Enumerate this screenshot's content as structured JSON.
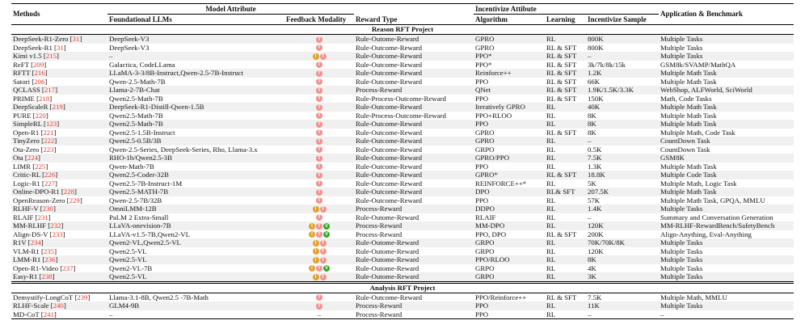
{
  "table": {
    "headers": {
      "methods": "Methods",
      "model_attribute": "Model Attribute",
      "foundational_llms": "Foundational LLMs",
      "feedback_modality": "Feedback Modality",
      "reward_type": "Reward Type",
      "incentivize_attibute": "Incentivize Attibute",
      "algorithm": "Algorithm",
      "learning": "Learning",
      "incentivize_sample": "Incentivize Sample",
      "application_benchmark": "Application & Benchmark"
    },
    "modality_legend": {
      "I": "image-modality-icon",
      "T": "text-modality-icon",
      "V": "video-modality-icon"
    },
    "colors": {
      "citation_red": "#e8362a",
      "stripe_gray": "#f0f0f0",
      "modality_I": "#e2a12f",
      "modality_T": "#f2908c",
      "modality_V": "#3aa32a"
    },
    "sections": [
      {
        "title": "Reason RFT Project",
        "rows": [
          {
            "method": "DeepSeek-R1-Zero",
            "cite": "31",
            "llm": "DeepSeek-V3",
            "modality": [
              "T"
            ],
            "reward": "Rule-Outome-Reward",
            "algorithm": "GPRO",
            "learning": "RL",
            "sample": "800K",
            "application": "Multiple Tasks"
          },
          {
            "method": "DeepSeek-R1",
            "cite": "31",
            "llm": "DeepSeek-V3",
            "modality": [
              "T"
            ],
            "reward": "Rule-Outcome-Reward",
            "algorithm": "GPRO",
            "learning": "RL & SFT",
            "sample": "800K",
            "application": "Multiple Tasks"
          },
          {
            "method": "Kimi v1.5",
            "cite": "215",
            "llm": "–",
            "modality": [
              "I",
              "T"
            ],
            "reward": "Rule-Outcome-Reward",
            "algorithm": "PPO*",
            "learning": "RL & SFT",
            "sample": "–",
            "application": "Multiple Tasks"
          },
          {
            "method": "ReFT",
            "cite": "209",
            "llm": "Galactica, CodeLLama",
            "modality": [
              "T"
            ],
            "reward": "Rule-Outcome-Reward",
            "algorithm": "PPO*",
            "learning": "RL & SFT",
            "sample": "3k/7k/8k/15k",
            "application": "GSM8k/SVAMP/MathQA"
          },
          {
            "method": "RFTT",
            "cite": "216",
            "llm": "LLaMA-3-3/8B-Instruct,Qwen-2.5-7B-Instruct",
            "modality": [
              "T"
            ],
            "reward": "Rule-Outcome-Reward",
            "algorithm": "Reinforce++",
            "learning": "RL & SFT",
            "sample": "1.2K",
            "application": "Multiple Math Task"
          },
          {
            "method": "Satori",
            "cite": "206",
            "llm": "Qwen-2.5-Math-7B",
            "modality": [
              "T"
            ],
            "reward": "Rule-Outcome-Reward",
            "algorithm": "PPO",
            "learning": "RL & SFT",
            "sample": "66K",
            "application": "Multiple Math Task"
          },
          {
            "method": "QCLASS",
            "cite": "217",
            "llm": "Llama-2-7B-Chat",
            "modality": [
              "T"
            ],
            "reward": "Process-Reward",
            "algorithm": "QNet",
            "learning": "RL & SFT",
            "sample": "1.9K/1.5K/3.3K",
            "application": "WebShop, ALFWorld, SciWorld"
          },
          {
            "method": "PRIME",
            "cite": "218",
            "llm": "Qwen2.5-Math-7B",
            "modality": [
              "T"
            ],
            "reward": "Rule-Process-Outcome-Reward",
            "algorithm": "PPO",
            "learning": "RL & SFT",
            "sample": "150K",
            "application": "Math, Code Tasks"
          },
          {
            "method": "DeepScaleR",
            "cite": "219",
            "llm": "DeepSeek-R1-Distill-Qwen-1.5B",
            "modality": [
              "T"
            ],
            "reward": "Rule-Outcome-Reward",
            "algorithm": "Iteratively GPRO",
            "learning": "RL",
            "sample": "40K",
            "application": "Multiple Math Task"
          },
          {
            "method": "PURE",
            "cite": "220",
            "llm": "Qwen2.5-Math-7B",
            "modality": [
              "T"
            ],
            "reward": "Rule-Process-Outcome-Reward",
            "algorithm": "PPO+RLOO",
            "learning": "RL",
            "sample": "8K",
            "application": "Multiple Math Task"
          },
          {
            "method": "SimpleRL",
            "cite": "123",
            "llm": "Qwen2.5-Math-7B",
            "modality": [
              "T"
            ],
            "reward": "Rule-Outcome-Reward",
            "algorithm": "PPO",
            "learning": "RL",
            "sample": "8K",
            "application": "Multiple Math Task"
          },
          {
            "method": "Open-R1",
            "cite": "221",
            "llm": "Qwen2.5-1.5B-Instruct",
            "modality": [
              "T"
            ],
            "reward": "Rule-Outcome-Reward",
            "algorithm": "GPRO",
            "learning": "RL & SFT",
            "sample": "8K",
            "application": "Multiple Math, Code Task"
          },
          {
            "method": "TinyZero",
            "cite": "222",
            "llm": "Qwen2.5-0.5B/3B",
            "modality": [
              "T"
            ],
            "reward": "Rule-Outcome-Reward",
            "algorithm": "GPRO",
            "learning": "RL",
            "sample": "–",
            "application": "CountDown Task"
          },
          {
            "method": "Ota-Zero",
            "cite": "223",
            "llm": "Qwen-2.5-Series, DeepSeek-Series, Rho, Llama-3.x",
            "modality": [
              "T"
            ],
            "reward": "Rule-Outcome-Reward",
            "algorithm": "GRPO",
            "learning": "RL",
            "sample": "0.5K",
            "application": "CountDown Task"
          },
          {
            "method": "Ota",
            "cite": "224",
            "llm": "RHO-1b/Qwen2.5-3B",
            "modality": [
              "T"
            ],
            "reward": "Rule-Outcome-Reward",
            "algorithm": "GPRO/PPO",
            "learning": "RL",
            "sample": "7.5K",
            "application": "GSM8K"
          },
          {
            "method": "LIMR",
            "cite": "225",
            "llm": "Qwen-Math-7B",
            "modality": [
              "T"
            ],
            "reward": "Rule-Outcome-Reward",
            "algorithm": "PPO",
            "learning": "RL",
            "sample": "1.3K",
            "application": "Multiple Math Task"
          },
          {
            "method": "Critic-RL",
            "cite": "226",
            "llm": "Qwen2.5-Coder-32B",
            "modality": [
              "T"
            ],
            "reward": "Rule-Outcome-Reward",
            "algorithm": "GPRO*",
            "learning": "RL & SFT",
            "sample": "18.8K",
            "application": "Multiple Code Task"
          },
          {
            "method": "Logic-R1",
            "cite": "227",
            "llm": "Qwen2.5-7B-Instruct-1M",
            "modality": [
              "T"
            ],
            "reward": "Rule-Outcome-Reward",
            "algorithm": "REINFORCE++*",
            "learning": "RL",
            "sample": "5K",
            "application": "Multiple Math, Logic Task"
          },
          {
            "method": "Online-DPO-R1",
            "cite": "228",
            "llm": "Qwen2.5-MATH-7B",
            "modality": [
              "T"
            ],
            "reward": "Rule-Outcome-Reward",
            "algorithm": "DPO",
            "learning": "RL& SFT",
            "sample": "207.5K",
            "application": "Multiple Math Task"
          },
          {
            "method": "OpenReason-Zero",
            "cite": "229",
            "llm": "Qwen-2.5-7B/32B",
            "modality": [
              "T"
            ],
            "reward": "Rule-Outcome-Reward",
            "algorithm": "PPO",
            "learning": "RL",
            "sample": "57K",
            "application": "Multiple Math Task, GPQA, MMLU"
          },
          {
            "method": "RLHF-V",
            "cite": "230",
            "llm": "OmniLMM-12B",
            "modality": [
              "I",
              "T"
            ],
            "reward": "Process-Reward",
            "algorithm": "DDPO",
            "learning": "RL",
            "sample": "1.4K",
            "application": "Multiple Tasks"
          },
          {
            "method": "RLAIF",
            "cite": "231",
            "llm": "PaLM 2 Extra-Small",
            "modality": [
              "T"
            ],
            "reward": "Rule-Outome-Reward",
            "algorithm": "RLAIF",
            "learning": "RL",
            "sample": "–",
            "application": "Summary and Conversation Generation"
          },
          {
            "method": "MM-RLHF",
            "cite": "232",
            "llm": "LLaVA-onevision-7B",
            "modality": [
              "I",
              "T",
              "V"
            ],
            "reward": "Process-Reward",
            "algorithm": "MM-DPO",
            "learning": "RL",
            "sample": "120K",
            "application": "MM-RLHF-RewardBench/SafetyBench"
          },
          {
            "method": "Align-DS-V",
            "cite": "233",
            "llm": "LLaVA-v1.5-7B,Qwen2-VL",
            "modality": [
              "I",
              "T",
              "V"
            ],
            "reward": "Process-Reward",
            "algorithm": "PPO, DPO",
            "learning": "RL & SFT",
            "sample": "200K",
            "application": "Align-Anything, Eval-Anything"
          },
          {
            "method": "R1V",
            "cite": "234",
            "llm": "Qwen2-VL,Qwen2.5-VL",
            "modality": [
              "I",
              "T"
            ],
            "reward": "Rule-Outome-Reward",
            "algorithm": "GRPO",
            "learning": "RL",
            "sample": "70K/70K/8K",
            "application": "Multiple Tasks"
          },
          {
            "method": "VLM-R1",
            "cite": "235",
            "llm": "Qwen2.5-VL",
            "modality": [
              "I",
              "T"
            ],
            "reward": "Rule-Outome-Reward",
            "algorithm": "GRPO",
            "learning": "RL",
            "sample": "120K",
            "application": "Multiple Tasks"
          },
          {
            "method": "LMM-R1",
            "cite": "236",
            "llm": "Qwen2.5-VL",
            "modality": [
              "I",
              "T"
            ],
            "reward": "Rule-Outome-Reward",
            "algorithm": "PPO/RLOO",
            "learning": "RL",
            "sample": "8K",
            "application": "Multiple Tasks"
          },
          {
            "method": "Open-R1-Video",
            "cite": "237",
            "llm": "Qwen2-VL-7B",
            "modality": [
              "I",
              "T",
              "V"
            ],
            "reward": "Rule-Outome-Reward",
            "algorithm": "GRPO",
            "learning": "RL",
            "sample": "4K",
            "application": "Multiple Tasks"
          },
          {
            "method": "Easy-R1",
            "cite": "238",
            "llm": "Qwen2.5-VL",
            "modality": [
              "I",
              "T"
            ],
            "reward": "Rule-Outome-Reward",
            "algorithm": "GRPO",
            "learning": "RL",
            "sample": "3K",
            "application": "Multiple Tasks"
          }
        ]
      },
      {
        "title": "Analysis RFT Project",
        "rows": [
          {
            "method": "Demystify-LongCoT",
            "cite": "239",
            "llm": "Llama-3.1-8B, Qwen2.5 -7B-Math",
            "modality": [
              "T"
            ],
            "reward": "Rule-Outcome-Reward",
            "algorithm": "PPO/Reinforce++",
            "learning": "RL & SFT",
            "sample": "7.5K",
            "application": "Multiple Math, MMLU"
          },
          {
            "method": "RLHF-Scale",
            "cite": "240",
            "llm": "GLM4-9B",
            "modality": [
              "T"
            ],
            "reward": "Process-Reward",
            "algorithm": "PPO",
            "learning": "RL",
            "sample": "11K",
            "application": "Multiple Tasks"
          },
          {
            "method": "MD-CoT",
            "cite": "241",
            "llm": "–",
            "modality": "–",
            "reward": "Process-Reward",
            "algorithm": "PPO",
            "learning": "RL",
            "sample": "–",
            "application": "–"
          }
        ]
      }
    ]
  }
}
